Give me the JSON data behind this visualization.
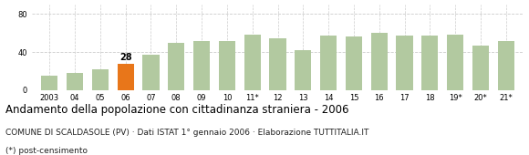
{
  "categories": [
    "2003",
    "04",
    "05",
    "06",
    "07",
    "08",
    "09",
    "10",
    "11*",
    "12",
    "13",
    "14",
    "15",
    "16",
    "17",
    "18",
    "19*",
    "20*",
    "21*"
  ],
  "values": [
    15,
    18,
    22,
    28,
    37,
    50,
    52,
    52,
    58,
    54,
    42,
    57,
    56,
    60,
    57,
    57,
    58,
    47,
    52
  ],
  "bar_colors": [
    "#b2c9a0",
    "#b2c9a0",
    "#b2c9a0",
    "#e8761a",
    "#b2c9a0",
    "#b2c9a0",
    "#b2c9a0",
    "#b2c9a0",
    "#b2c9a0",
    "#b2c9a0",
    "#b2c9a0",
    "#b2c9a0",
    "#b2c9a0",
    "#b2c9a0",
    "#b2c9a0",
    "#b2c9a0",
    "#b2c9a0",
    "#b2c9a0",
    "#b2c9a0"
  ],
  "highlighted_bar_index": 3,
  "highlighted_value": 28,
  "ylim": [
    0,
    90
  ],
  "yticks": [
    0,
    40,
    80
  ],
  "title": "Andamento della popolazione con cittadinanza straniera - 2006",
  "subtitle": "COMUNE DI SCALDASOLE (PV) · Dati ISTAT 1° gennaio 2006 · Elaborazione TUTTITALIA.IT",
  "footnote": "(*) post-censimento",
  "grid_color": "#cccccc",
  "background_color": "#ffffff",
  "title_fontsize": 8.5,
  "subtitle_fontsize": 6.5,
  "footnote_fontsize": 6.5,
  "tick_fontsize": 6.0
}
